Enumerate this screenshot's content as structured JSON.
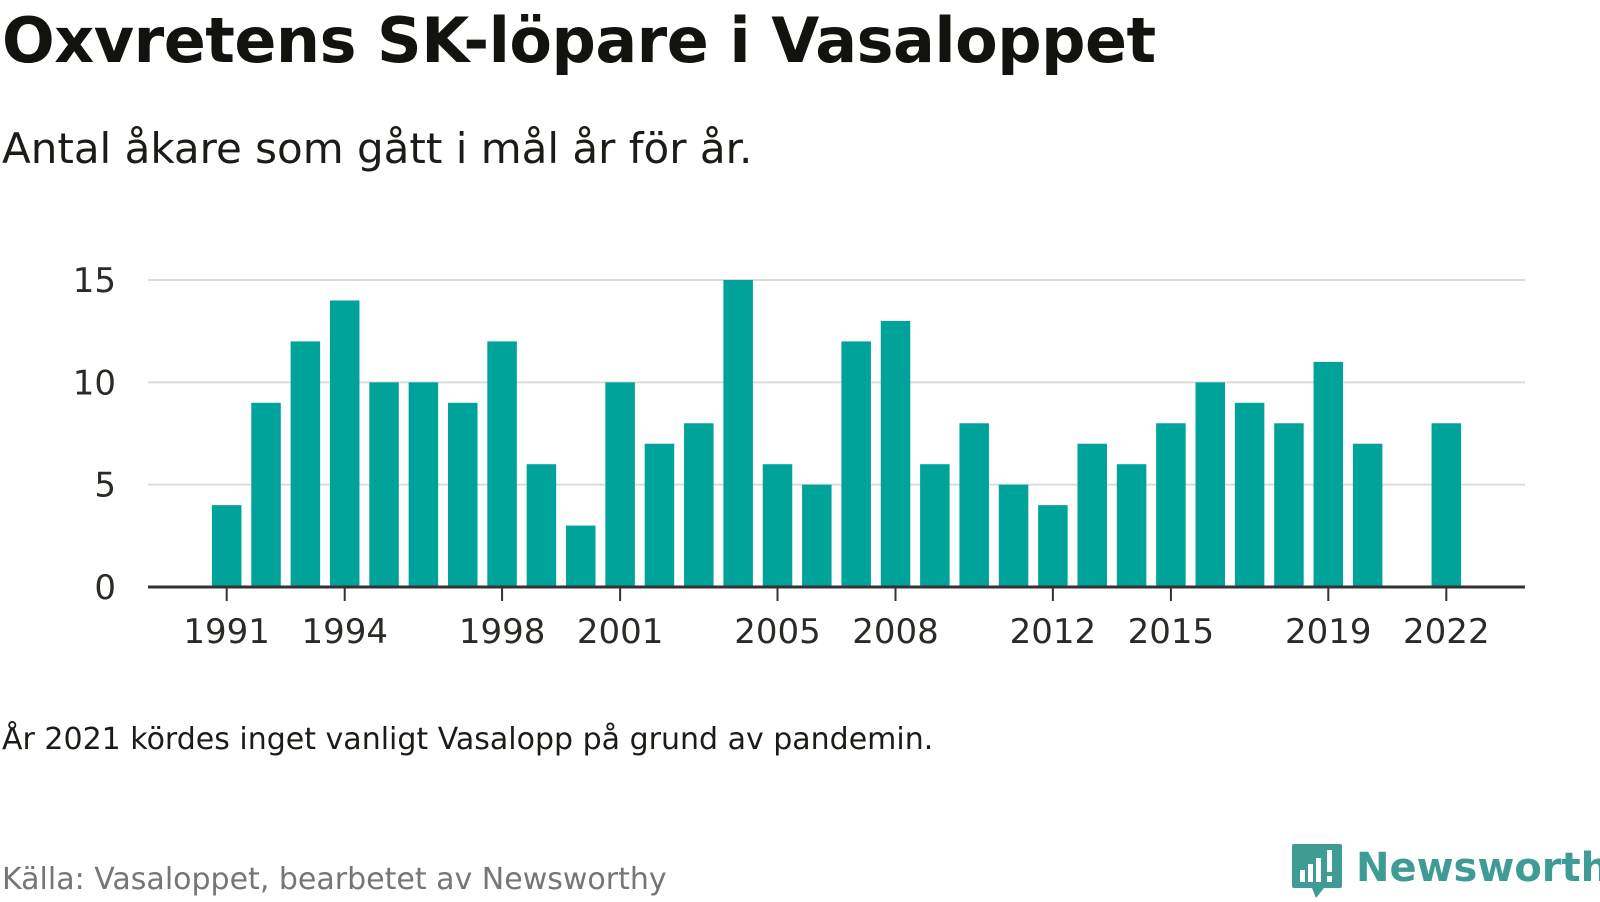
{
  "title": "Oxvretens SK-löpare i Vasaloppet",
  "subtitle": "Antal åkare som gått i mål år för år.",
  "note": "År 2021 kördes inget vanligt Vasalopp på grund av pandemin.",
  "source": "Källa: Vasaloppet, bearbetet av Newsworthy",
  "logo": {
    "text": "Newsworthy",
    "icon": "newsworthy-chart-bubble-icon"
  },
  "colors": {
    "bar": "#00a39a",
    "grid": "#dcdcdc",
    "axis": "#333333",
    "logo": "#3f9c94"
  },
  "chart_data": {
    "type": "bar",
    "x": [
      1991,
      1992,
      1993,
      1994,
      1995,
      1996,
      1997,
      1998,
      1999,
      2000,
      2001,
      2002,
      2003,
      2004,
      2005,
      2006,
      2007,
      2008,
      2009,
      2010,
      2011,
      2012,
      2013,
      2014,
      2015,
      2016,
      2017,
      2018,
      2019,
      2020,
      2021,
      2022
    ],
    "values": [
      4,
      9,
      12,
      14,
      10,
      10,
      9,
      12,
      6,
      3,
      10,
      7,
      8,
      15,
      6,
      5,
      12,
      13,
      6,
      8,
      5,
      4,
      7,
      6,
      8,
      10,
      9,
      8,
      11,
      7,
      null,
      8
    ],
    "xticks": [
      "1991",
      "1994",
      "1998",
      "2001",
      "2005",
      "2008",
      "2012",
      "2015",
      "2019",
      "2022"
    ],
    "yticks": [
      "0",
      "5",
      "10",
      "15"
    ],
    "ylim": [
      0,
      15
    ],
    "xlim": [
      1989,
      2024
    ],
    "grid": "horizontal"
  }
}
